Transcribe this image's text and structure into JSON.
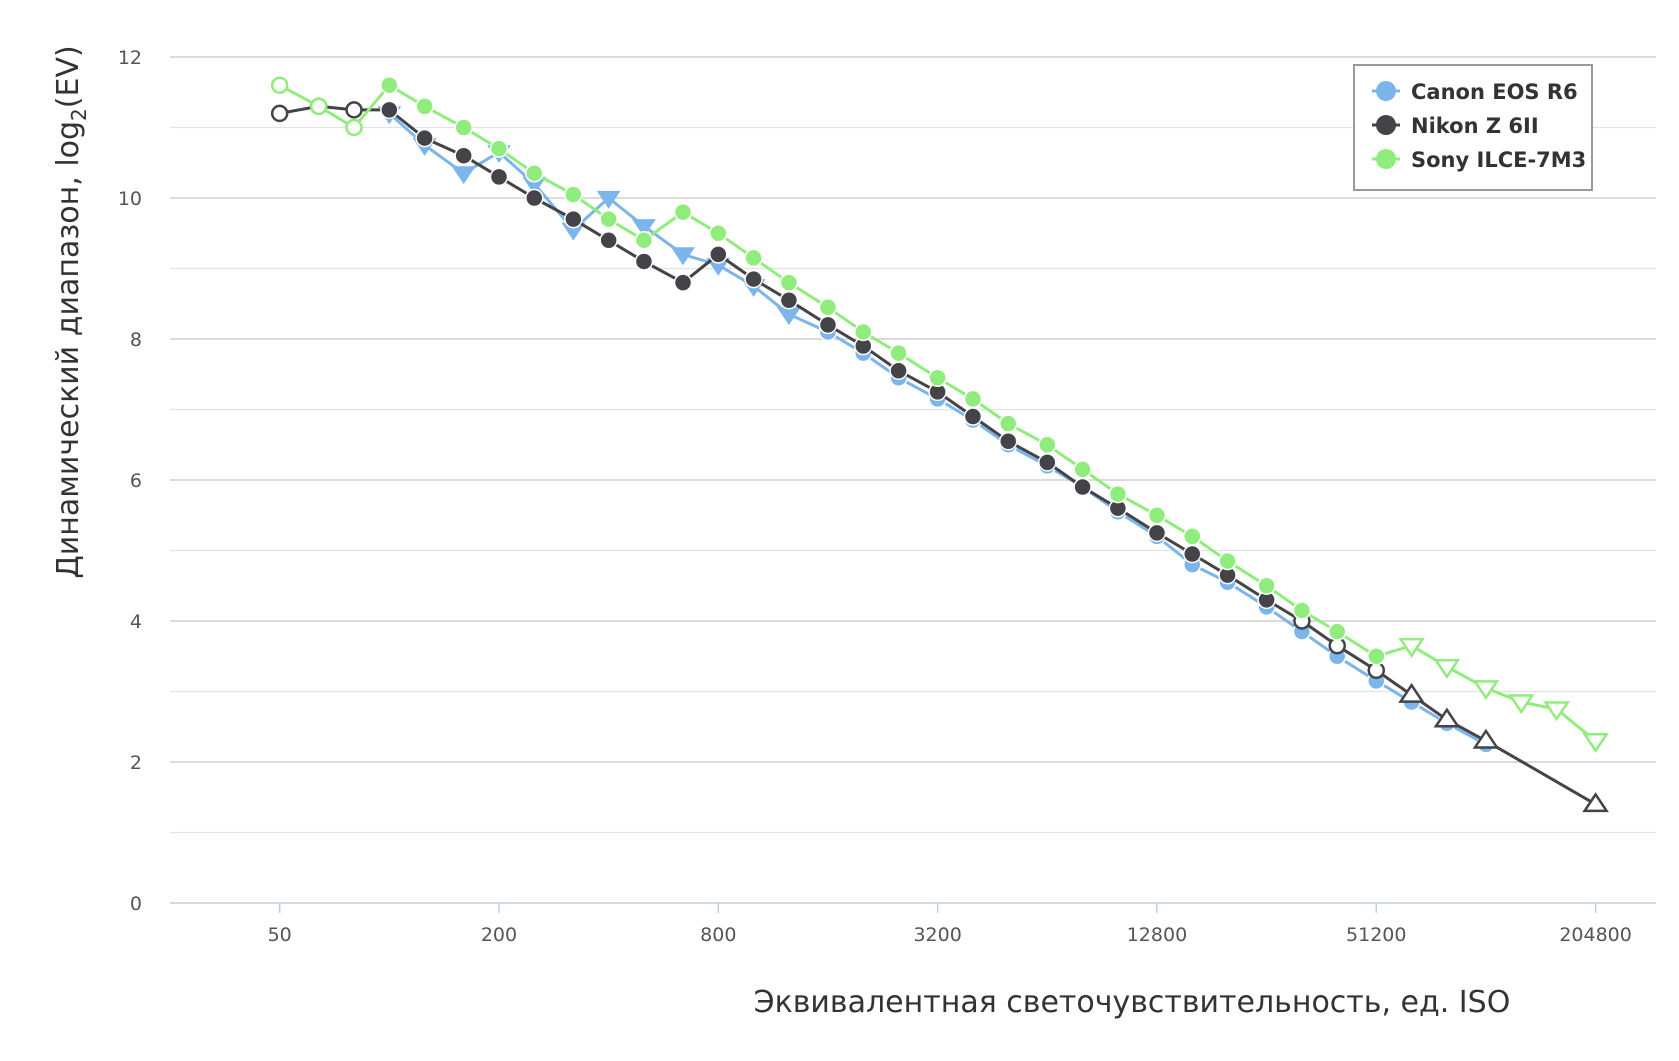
{
  "chart_data": {
    "type": "line",
    "title": "",
    "xlabel": "Эквивалентная светочувствительность, ед. ISO",
    "ylabel": "Динамический диапазон, log",
    "ylabel_sub": "2",
    "ylabel_tail": "(EV)",
    "x_scale": "log2",
    "xlim": [
      25,
      300000
    ],
    "ylim": [
      0,
      12
    ],
    "y_ticks": [
      0,
      2,
      4,
      6,
      8,
      10,
      12
    ],
    "x_ticks": [
      50,
      200,
      800,
      3200,
      12800,
      51200,
      204800
    ],
    "x_tick_labels": [
      "50",
      "200",
      "800",
      "3200",
      "12800",
      "51200",
      "204800"
    ],
    "grid": true,
    "legend_position": "top-right",
    "series": [
      {
        "name": "Canon EOS R6",
        "color": "#7cb5ec",
        "points": [
          [
            100,
            11.2,
            "down"
          ],
          [
            125,
            10.75,
            "down"
          ],
          [
            160,
            10.35,
            "down"
          ],
          [
            200,
            10.65,
            "down"
          ],
          [
            250,
            10.2,
            "down"
          ],
          [
            320,
            9.55,
            "down"
          ],
          [
            400,
            10.0,
            "down"
          ],
          [
            500,
            9.6,
            "down"
          ],
          [
            640,
            9.2,
            "down"
          ],
          [
            800,
            9.05,
            "down"
          ],
          [
            1000,
            8.75,
            "down"
          ],
          [
            1250,
            8.35,
            "down"
          ],
          [
            1600,
            8.1,
            "filled"
          ],
          [
            2000,
            7.8,
            "filled"
          ],
          [
            2500,
            7.45,
            "filled"
          ],
          [
            3200,
            7.15,
            "filled"
          ],
          [
            4000,
            6.85,
            "filled"
          ],
          [
            5000,
            6.5,
            "filled"
          ],
          [
            6400,
            6.2,
            "filled"
          ],
          [
            8000,
            5.9,
            "filled"
          ],
          [
            10000,
            5.55,
            "filled"
          ],
          [
            12800,
            5.2,
            "filled"
          ],
          [
            16000,
            4.8,
            "filled"
          ],
          [
            20000,
            4.55,
            "filled"
          ],
          [
            25600,
            4.2,
            "filled"
          ],
          [
            32000,
            3.85,
            "filled"
          ],
          [
            40000,
            3.5,
            "filled"
          ],
          [
            51200,
            3.15,
            "filled"
          ],
          [
            64000,
            2.85,
            "filled"
          ],
          [
            80000,
            2.55,
            "filled"
          ],
          [
            102400,
            2.25,
            "filled"
          ]
        ]
      },
      {
        "name": "Nikon Z 6II",
        "color": "#434348",
        "points": [
          [
            50,
            11.2,
            "open"
          ],
          [
            64,
            11.3,
            "open"
          ],
          [
            80,
            11.25,
            "open"
          ],
          [
            100,
            11.25,
            "filled"
          ],
          [
            125,
            10.85,
            "filled"
          ],
          [
            160,
            10.6,
            "filled"
          ],
          [
            200,
            10.3,
            "filled"
          ],
          [
            250,
            10.0,
            "filled"
          ],
          [
            320,
            9.7,
            "filled"
          ],
          [
            400,
            9.4,
            "filled"
          ],
          [
            500,
            9.1,
            "filled"
          ],
          [
            640,
            8.8,
            "filled"
          ],
          [
            800,
            9.2,
            "filled"
          ],
          [
            1000,
            8.85,
            "filled"
          ],
          [
            1250,
            8.55,
            "filled"
          ],
          [
            1600,
            8.2,
            "filled"
          ],
          [
            2000,
            7.9,
            "filled"
          ],
          [
            2500,
            7.55,
            "filled"
          ],
          [
            3200,
            7.25,
            "filled"
          ],
          [
            4000,
            6.9,
            "filled"
          ],
          [
            5000,
            6.55,
            "filled"
          ],
          [
            6400,
            6.25,
            "filled"
          ],
          [
            8000,
            5.9,
            "filled"
          ],
          [
            10000,
            5.6,
            "filled"
          ],
          [
            12800,
            5.25,
            "filled"
          ],
          [
            16000,
            4.95,
            "filled"
          ],
          [
            20000,
            4.65,
            "filled"
          ],
          [
            25600,
            4.3,
            "filled"
          ],
          [
            32000,
            4.0,
            "open"
          ],
          [
            40000,
            3.65,
            "open"
          ],
          [
            51200,
            3.3,
            "open"
          ],
          [
            64000,
            2.95,
            "open-up"
          ],
          [
            80000,
            2.6,
            "open-up"
          ],
          [
            102400,
            2.3,
            "open-up"
          ],
          [
            204800,
            1.4,
            "open-up"
          ]
        ]
      },
      {
        "name": "Sony ILCE-7M3",
        "color": "#90ed7d",
        "points": [
          [
            50,
            11.6,
            "open"
          ],
          [
            64,
            11.3,
            "open"
          ],
          [
            80,
            11.0,
            "open"
          ],
          [
            100,
            11.6,
            "filled"
          ],
          [
            125,
            11.3,
            "filled"
          ],
          [
            160,
            11.0,
            "filled"
          ],
          [
            200,
            10.7,
            "filled"
          ],
          [
            250,
            10.35,
            "filled"
          ],
          [
            320,
            10.05,
            "filled"
          ],
          [
            400,
            9.7,
            "filled"
          ],
          [
            500,
            9.4,
            "filled"
          ],
          [
            640,
            9.8,
            "filled"
          ],
          [
            800,
            9.5,
            "filled"
          ],
          [
            1000,
            9.15,
            "filled"
          ],
          [
            1250,
            8.8,
            "filled"
          ],
          [
            1600,
            8.45,
            "filled"
          ],
          [
            2000,
            8.1,
            "filled"
          ],
          [
            2500,
            7.8,
            "filled"
          ],
          [
            3200,
            7.45,
            "filled"
          ],
          [
            4000,
            7.15,
            "filled"
          ],
          [
            5000,
            6.8,
            "filled"
          ],
          [
            6400,
            6.5,
            "filled"
          ],
          [
            8000,
            6.15,
            "filled"
          ],
          [
            10000,
            5.8,
            "filled"
          ],
          [
            12800,
            5.5,
            "filled"
          ],
          [
            16000,
            5.2,
            "filled"
          ],
          [
            20000,
            4.85,
            "filled"
          ],
          [
            25600,
            4.5,
            "filled"
          ],
          [
            32000,
            4.15,
            "filled"
          ],
          [
            40000,
            3.85,
            "filled"
          ],
          [
            51200,
            3.5,
            "filled"
          ],
          [
            64000,
            3.65,
            "open-down"
          ],
          [
            80000,
            3.35,
            "open-down"
          ],
          [
            102400,
            3.05,
            "open-down"
          ],
          [
            128000,
            2.85,
            "open-down"
          ],
          [
            160000,
            2.75,
            "open-down"
          ],
          [
            204800,
            2.3,
            "open-down"
          ]
        ]
      }
    ]
  }
}
